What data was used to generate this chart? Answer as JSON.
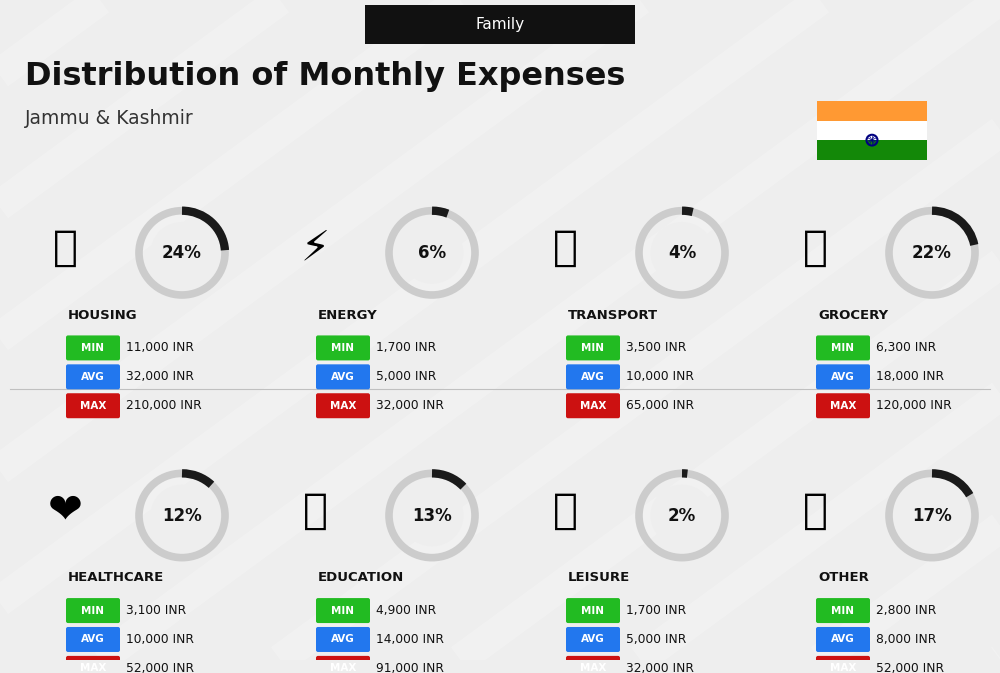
{
  "title": "Distribution of Monthly Expenses",
  "subtitle": "Jammu & Kashmir",
  "tag": "Family",
  "bg_color": "#eeeeee",
  "categories": [
    {
      "name": "HOUSING",
      "pct": 24,
      "min": "11,000 INR",
      "avg": "32,000 INR",
      "max": "210,000 INR",
      "row": 0,
      "col": 0
    },
    {
      "name": "ENERGY",
      "pct": 6,
      "min": "1,700 INR",
      "avg": "5,000 INR",
      "max": "32,000 INR",
      "row": 0,
      "col": 1
    },
    {
      "name": "TRANSPORT",
      "pct": 4,
      "min": "3,500 INR",
      "avg": "10,000 INR",
      "max": "65,000 INR",
      "row": 0,
      "col": 2
    },
    {
      "name": "GROCERY",
      "pct": 22,
      "min": "6,300 INR",
      "avg": "18,000 INR",
      "max": "120,000 INR",
      "row": 0,
      "col": 3
    },
    {
      "name": "HEALTHCARE",
      "pct": 12,
      "min": "3,100 INR",
      "avg": "10,000 INR",
      "max": "52,000 INR",
      "row": 1,
      "col": 0
    },
    {
      "name": "EDUCATION",
      "pct": 13,
      "min": "4,900 INR",
      "avg": "14,000 INR",
      "max": "91,000 INR",
      "row": 1,
      "col": 1
    },
    {
      "name": "LEISURE",
      "pct": 2,
      "min": "1,700 INR",
      "avg": "5,000 INR",
      "max": "32,000 INR",
      "row": 1,
      "col": 2
    },
    {
      "name": "OTHER",
      "pct": 17,
      "min": "2,800 INR",
      "avg": "8,000 INR",
      "max": "52,000 INR",
      "row": 1,
      "col": 3
    }
  ],
  "min_color": "#22bb22",
  "avg_color": "#2277ee",
  "max_color": "#cc1111",
  "donut_dark": "#1a1a1a",
  "donut_light": "#cccccc",
  "india_orange": "#FF9933",
  "india_green": "#138808",
  "india_white": "#FFFFFF",
  "india_blue": "#000080",
  "tag_bg": "#111111",
  "tag_fg": "#ffffff"
}
